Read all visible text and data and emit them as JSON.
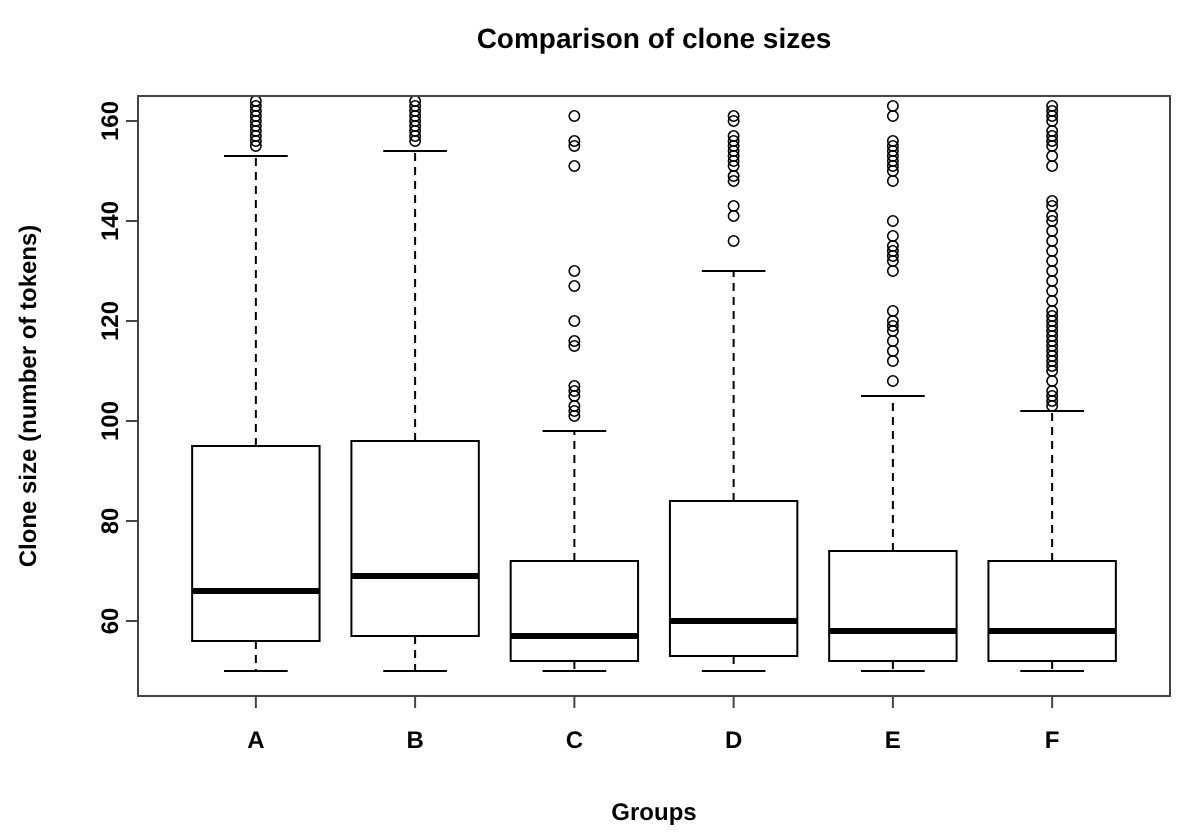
{
  "chart_data": {
    "type": "box",
    "title": "Comparison of clone sizes",
    "xlabel": "Groups",
    "ylabel": "Clone size (number of tokens)",
    "categories": [
      "A",
      "B",
      "C",
      "D",
      "E",
      "F"
    ],
    "ylim": [
      45,
      165
    ],
    "yticks": [
      60,
      80,
      100,
      120,
      140,
      160
    ],
    "grid": false,
    "boxes": [
      {
        "low": 50,
        "q1": 56,
        "median": 66,
        "q3": 95,
        "high": 153,
        "outliers": [
          155,
          156,
          157,
          158,
          159,
          160,
          161,
          162,
          163,
          164
        ]
      },
      {
        "low": 50,
        "q1": 57,
        "median": 69,
        "q3": 96,
        "high": 154,
        "outliers": [
          156,
          157,
          158,
          159,
          160,
          161,
          162,
          163,
          164
        ]
      },
      {
        "low": 50,
        "q1": 52,
        "median": 57,
        "q3": 72,
        "high": 98,
        "outliers": [
          101,
          102,
          103,
          105,
          106,
          107,
          115,
          116,
          120,
          127,
          130,
          151,
          155,
          156,
          161
        ]
      },
      {
        "low": 50,
        "q1": 53,
        "median": 60,
        "q3": 84,
        "high": 130,
        "outliers": [
          136,
          141,
          143,
          148,
          149,
          151,
          152,
          153,
          154,
          155,
          156,
          157,
          160,
          161
        ]
      },
      {
        "low": 50,
        "q1": 52,
        "median": 58,
        "q3": 74,
        "high": 105,
        "outliers": [
          108,
          112,
          114,
          116,
          118,
          119,
          120,
          122,
          130,
          132,
          133,
          134,
          135,
          137,
          140,
          148,
          150,
          151,
          152,
          153,
          154,
          155,
          156,
          161,
          163
        ]
      },
      {
        "low": 50,
        "q1": 52,
        "median": 58,
        "q3": 72,
        "high": 102,
        "outliers": [
          103,
          104,
          105,
          106,
          108,
          110,
          111,
          112,
          113,
          114,
          115,
          116,
          117,
          118,
          119,
          120,
          121,
          122,
          124,
          126,
          128,
          130,
          132,
          134,
          136,
          138,
          140,
          141,
          143,
          144,
          151,
          153,
          155,
          156,
          157,
          158,
          160,
          161,
          162,
          163
        ]
      }
    ]
  }
}
